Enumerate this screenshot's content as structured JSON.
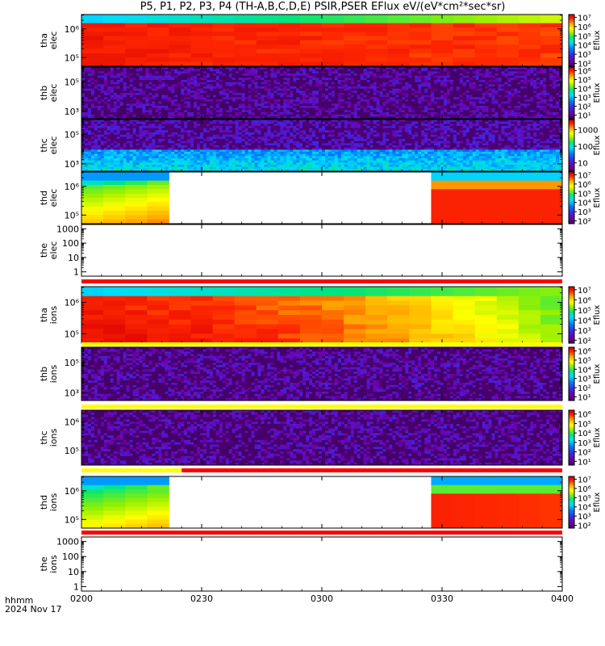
{
  "title": "P5, P1, P2, P3, P4 (TH-A,B,C,D,E) PSIR,PSER EFlux eV/(eV*cm²*sec*sr)",
  "footer": {
    "time_unit": "hhmm",
    "date": "2024 Nov 17"
  },
  "colors": {
    "flag_red": "#ff0000",
    "flag_yellow": "#ffff00",
    "frame": "#000000",
    "no_data": "#ffffff"
  },
  "chart_data": {
    "type": "heatmap",
    "colormap": "rainbow (purple-blue-cyan-green-yellow-red)",
    "x_axis": {
      "range": [
        "0200",
        "0400"
      ],
      "tick_labels": [
        "0200",
        "0230",
        "0300",
        "0330",
        "0400"
      ],
      "tick_minutes": [
        0,
        30,
        60,
        90,
        120
      ]
    },
    "panels": [
      {
        "probe": "tha",
        "species": "elec",
        "ylabel": [
          "tha",
          "elec"
        ],
        "y_ticks": [
          {
            "v": 5,
            "label": "10⁵"
          },
          {
            "v": 6,
            "label": "10⁶"
          }
        ],
        "y_range": [
          4.7,
          6.5
        ],
        "colorbar": {
          "label": "Eflux",
          "range": [
            1.7,
            7.3
          ],
          "ticks": [
            {
              "v": 2,
              "t": "10²"
            },
            {
              "v": 3,
              "t": "10³"
            },
            {
              "v": 4,
              "t": "10⁴"
            },
            {
              "v": 5,
              "t": "10⁵"
            },
            {
              "v": 6,
              "t": "10⁶"
            },
            {
              "v": 7,
              "t": "10⁷"
            }
          ]
        },
        "pattern": "red core with green-blue band at top energies",
        "has_data": true
      },
      {
        "probe": "thb",
        "species": "elec",
        "ylabel": [
          "thb",
          "elec"
        ],
        "y_ticks": [
          {
            "v": 3,
            "label": "10³"
          },
          {
            "v": 5,
            "label": "10⁵"
          }
        ],
        "y_range": [
          2.5,
          6.0
        ],
        "colorbar": {
          "label": "Eflux",
          "range": [
            0.6,
            6.4
          ],
          "ticks": [
            {
              "v": 1,
              "t": "10¹"
            },
            {
              "v": 2,
              "t": "10²"
            },
            {
              "v": 3,
              "t": "10³"
            },
            {
              "v": 4,
              "t": "10⁴"
            },
            {
              "v": 5,
              "t": "10⁵"
            },
            {
              "v": 6,
              "t": "10⁶"
            }
          ]
        },
        "pattern": "sparse purple noise",
        "has_data": true
      },
      {
        "probe": "thc",
        "species": "elec",
        "ylabel": [
          "thc",
          "elec"
        ],
        "y_ticks": [
          {
            "v": 3,
            "label": "10³"
          },
          {
            "v": 5,
            "label": "10⁵"
          }
        ],
        "y_range": [
          2.5,
          6.0
        ],
        "colorbar": {
          "label": "Eflux",
          "range": [
            0.5,
            3.6
          ],
          "ticks": [
            {
              "v": 1,
              "t": "10"
            },
            {
              "v": 2,
              "t": "100"
            },
            {
              "v": 3,
              "t": "1000"
            }
          ]
        },
        "pattern": "blue-cyan noise at low energy, purple above",
        "has_data": true
      },
      {
        "probe": "thd",
        "species": "elec",
        "ylabel": [
          "thd",
          "elec"
        ],
        "y_ticks": [
          {
            "v": 5,
            "label": "10⁵"
          },
          {
            "v": 6,
            "label": "10⁶"
          }
        ],
        "y_range": [
          4.7,
          6.5
        ],
        "colorbar": {
          "label": "Eflux",
          "range": [
            1.7,
            7.3
          ],
          "ticks": [
            {
              "v": 2,
              "t": "10²"
            },
            {
              "v": 3,
              "t": "10³"
            },
            {
              "v": 4,
              "t": "10⁴"
            },
            {
              "v": 5,
              "t": "10⁵"
            },
            {
              "v": 6,
              "t": "10⁶"
            },
            {
              "v": 7,
              "t": "10⁷"
            }
          ]
        },
        "data_intervals_minutes": [
          [
            0,
            23
          ],
          [
            90,
            120
          ]
        ],
        "pattern": "yellow-orange early, red late",
        "has_data": true
      },
      {
        "probe": "the",
        "species": "elec",
        "ylabel": [
          "the",
          "elec"
        ],
        "y_ticks": [
          {
            "v": 0,
            "label": "1"
          },
          {
            "v": 1,
            "label": "10"
          },
          {
            "v": 2,
            "label": "100"
          },
          {
            "v": 3,
            "label": "1000"
          }
        ],
        "y_range": [
          -0.3,
          3.3
        ],
        "colorbar": null,
        "has_data": false
      },
      {
        "probe": "tha",
        "species": "ions",
        "ylabel": [
          "tha",
          "ions"
        ],
        "y_ticks": [
          {
            "v": 5,
            "label": "10⁵"
          },
          {
            "v": 6,
            "label": "10⁶"
          }
        ],
        "y_range": [
          4.7,
          6.5
        ],
        "colorbar": {
          "label": "Eflux",
          "range": [
            1.7,
            7.3
          ],
          "ticks": [
            {
              "v": 2,
              "t": "10²"
            },
            {
              "v": 3,
              "t": "10³"
            },
            {
              "v": 4,
              "t": "10⁴"
            },
            {
              "v": 5,
              "t": "10⁵"
            },
            {
              "v": 6,
              "t": "10⁶"
            },
            {
              "v": 7,
              "t": "10⁷"
            }
          ]
        },
        "pattern": "red core fading to orange-yellow later",
        "has_data": true
      },
      {
        "probe": "thb",
        "species": "ions",
        "ylabel": [
          "thb",
          "ions"
        ],
        "y_ticks": [
          {
            "v": 3,
            "label": "10³"
          },
          {
            "v": 5,
            "label": "10⁵"
          }
        ],
        "y_range": [
          2.5,
          6.0
        ],
        "colorbar": {
          "label": "Eflux",
          "range": [
            0.6,
            6.4
          ],
          "ticks": [
            {
              "v": 1,
              "t": "10¹"
            },
            {
              "v": 2,
              "t": "10²"
            },
            {
              "v": 3,
              "t": "10³"
            },
            {
              "v": 4,
              "t": "10⁴"
            },
            {
              "v": 5,
              "t": "10⁵"
            },
            {
              "v": 6,
              "t": "10⁶"
            }
          ]
        },
        "pattern": "sparse purple noise",
        "has_data": true
      },
      {
        "probe": "thc",
        "species": "ions",
        "ylabel": [
          "thc",
          "ions"
        ],
        "y_ticks": [
          {
            "v": 5,
            "label": "10⁵"
          },
          {
            "v": 6,
            "label": "10⁶"
          }
        ],
        "y_range": [
          4.5,
          6.4
        ],
        "colorbar": {
          "label": "Eflux",
          "range": [
            0.6,
            6.4
          ],
          "ticks": [
            {
              "v": 1,
              "t": "10¹"
            },
            {
              "v": 2,
              "t": "10²"
            },
            {
              "v": 3,
              "t": "10³"
            },
            {
              "v": 4,
              "t": "10⁴"
            },
            {
              "v": 5,
              "t": "10⁵"
            },
            {
              "v": 6,
              "t": "10⁶"
            }
          ]
        },
        "pattern": "sparse purple noise",
        "has_data": true
      },
      {
        "probe": "thd",
        "species": "ions",
        "ylabel": [
          "thd",
          "ions"
        ],
        "y_ticks": [
          {
            "v": 5,
            "label": "10⁵"
          },
          {
            "v": 6,
            "label": "10⁶"
          }
        ],
        "y_range": [
          4.7,
          6.5
        ],
        "colorbar": {
          "label": "Eflux",
          "range": [
            1.7,
            7.3
          ],
          "ticks": [
            {
              "v": 2,
              "t": "10²"
            },
            {
              "v": 3,
              "t": "10³"
            },
            {
              "v": 4,
              "t": "10⁴"
            },
            {
              "v": 5,
              "t": "10⁵"
            },
            {
              "v": 6,
              "t": "10⁶"
            },
            {
              "v": 7,
              "t": "10⁷"
            }
          ]
        },
        "data_intervals_minutes": [
          [
            0,
            23
          ],
          [
            90,
            120
          ]
        ],
        "pattern": "green-yellow early, dark red late",
        "has_data": true
      },
      {
        "probe": "the",
        "species": "ions",
        "ylabel": [
          "the",
          "ions"
        ],
        "y_ticks": [
          {
            "v": 0,
            "label": "1"
          },
          {
            "v": 1,
            "label": "10"
          },
          {
            "v": 2,
            "label": "100"
          },
          {
            "v": 3,
            "label": "1000"
          }
        ],
        "y_range": [
          -0.3,
          3.3
        ],
        "colorbar": null,
        "has_data": false
      }
    ],
    "mode_bars": [
      {
        "after_panel": 4,
        "segments": [
          {
            "from_min": 0,
            "to_min": 120,
            "color": "red"
          }
        ]
      },
      {
        "after_panel": 5,
        "segments": [
          {
            "from_min": 0,
            "to_min": 120,
            "color": "yellow"
          }
        ]
      },
      {
        "after_panel": 6,
        "segments": [
          {
            "from_min": 0,
            "to_min": 120,
            "color": "yellow"
          }
        ]
      },
      {
        "after_panel": 7,
        "segments": [
          {
            "from_min": 0,
            "to_min": 25,
            "color": "yellow"
          },
          {
            "from_min": 25,
            "to_min": 120,
            "color": "red"
          }
        ]
      },
      {
        "after_panel": 8,
        "segments": [
          {
            "from_min": 0,
            "to_min": 120,
            "color": "red"
          }
        ]
      }
    ]
  }
}
